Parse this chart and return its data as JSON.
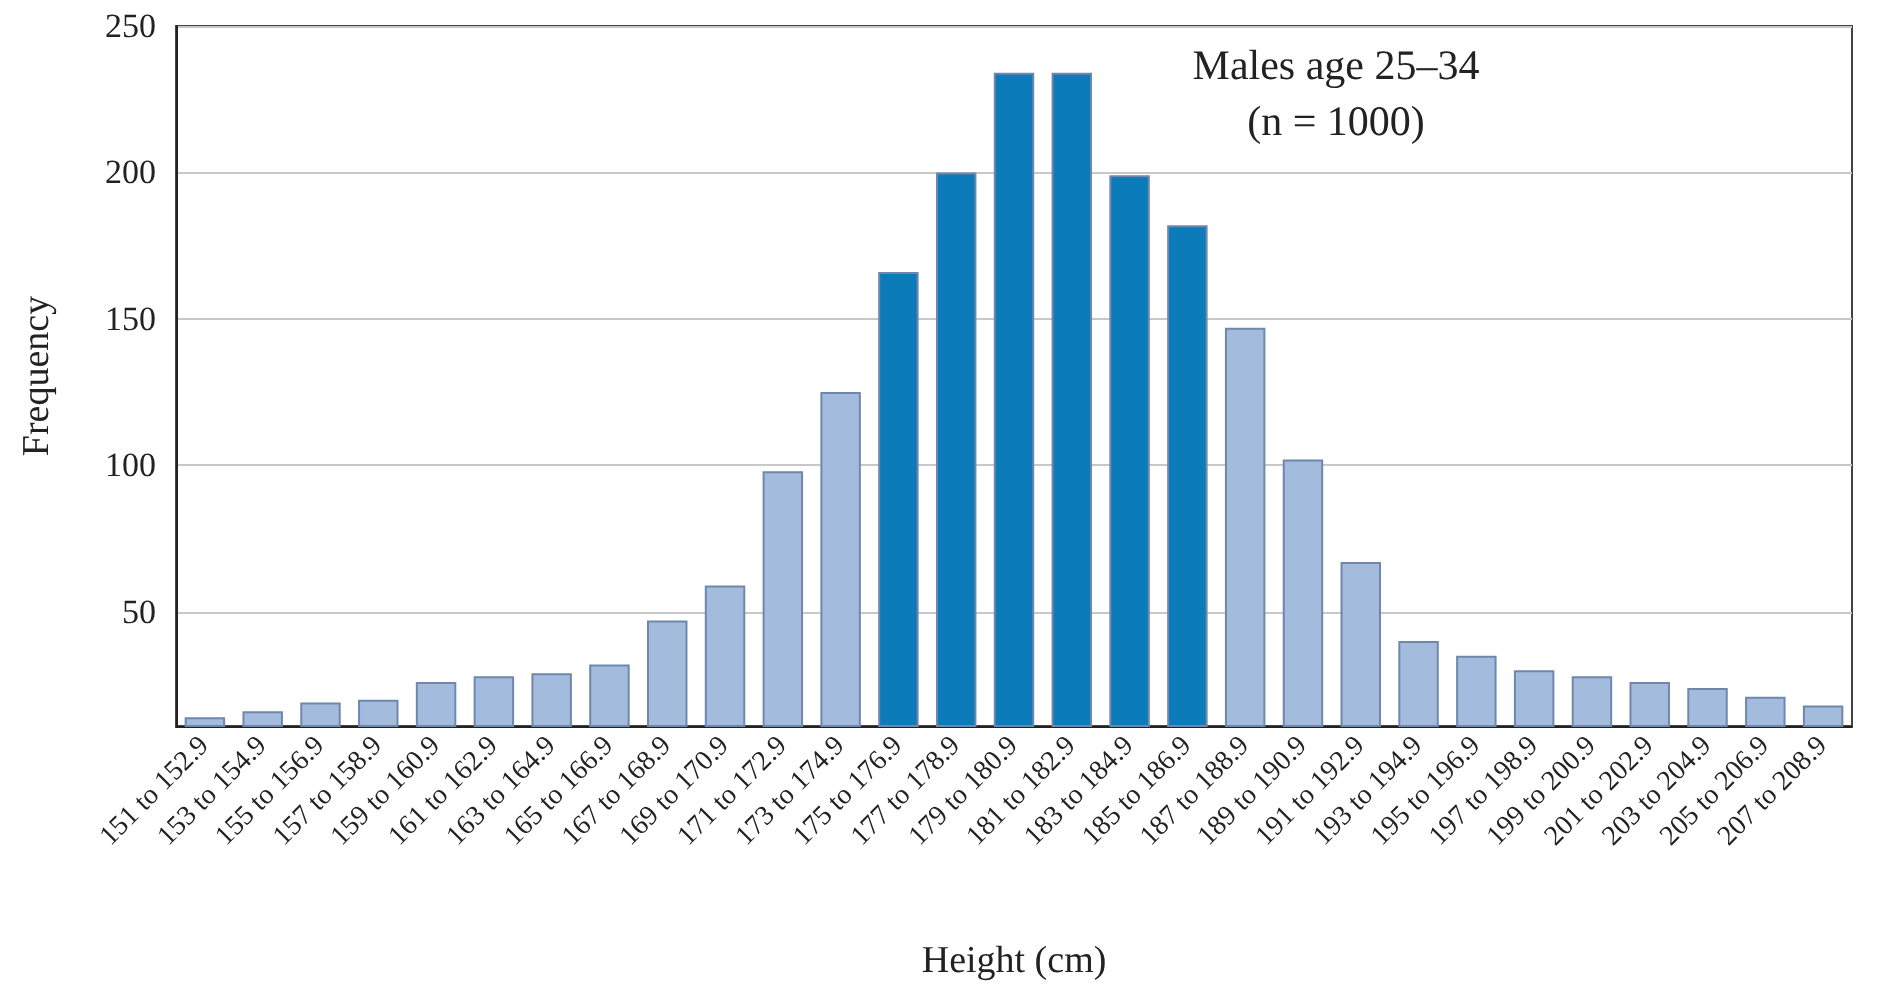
{
  "chart_data": {
    "type": "bar",
    "xlabel": "Height (cm)",
    "ylabel": "Frequency",
    "categories": [
      "151 to 152.9",
      "153 to 154.9",
      "155 to 156.9",
      "157 to 158.9",
      "159 to 160.9",
      "161 to 162.9",
      "163 to 164.9",
      "165 to 166.9",
      "167 to 168.9",
      "169 to 170.9",
      "171 to 172.9",
      "173 to 174.9",
      "175 to 176.9",
      "177 to 178.9",
      "179 to 180.9",
      "181 to 182.9",
      "183 to 184.9",
      "185 to 186.9",
      "187 to 188.9",
      "189 to 190.9",
      "191 to 192.9",
      "193 to 194.9",
      "195 to 196.9",
      "197 to 198.9",
      "199 to 200.9",
      "201 to 202.9",
      "203 to 204.9",
      "205 to 206.9",
      "207 to 208.9"
    ],
    "values": [
      14,
      16,
      19,
      20,
      26,
      28,
      29,
      32,
      47,
      59,
      98,
      125,
      166,
      200,
      234,
      234,
      199,
      182,
      147,
      102,
      67,
      40,
      35,
      30,
      28,
      26,
      24,
      21,
      18
    ],
    "colors": [
      "#a3bcdd",
      "#a3bcdd",
      "#a3bcdd",
      "#a3bcdd",
      "#a3bcdd",
      "#a3bcdd",
      "#a3bcdd",
      "#a3bcdd",
      "#a3bcdd",
      "#a3bcdd",
      "#a3bcdd",
      "#a3bcdd",
      "#0b7bba",
      "#0b7bba",
      "#0b7bba",
      "#0b7bba",
      "#0b7bba",
      "#0b7bba",
      "#a3bcdd",
      "#a3bcdd",
      "#a3bcdd",
      "#a3bcdd",
      "#a3bcdd",
      "#a3bcdd",
      "#a3bcdd",
      "#a3bcdd",
      "#a3bcdd",
      "#a3bcdd",
      "#a3bcdd"
    ],
    "ylim": [
      11,
      250
    ],
    "yticks": [
      50,
      100,
      150,
      200,
      250
    ],
    "grid": "y",
    "annotations": [
      "Males age 25–34",
      "(n = 1000)"
    ]
  }
}
